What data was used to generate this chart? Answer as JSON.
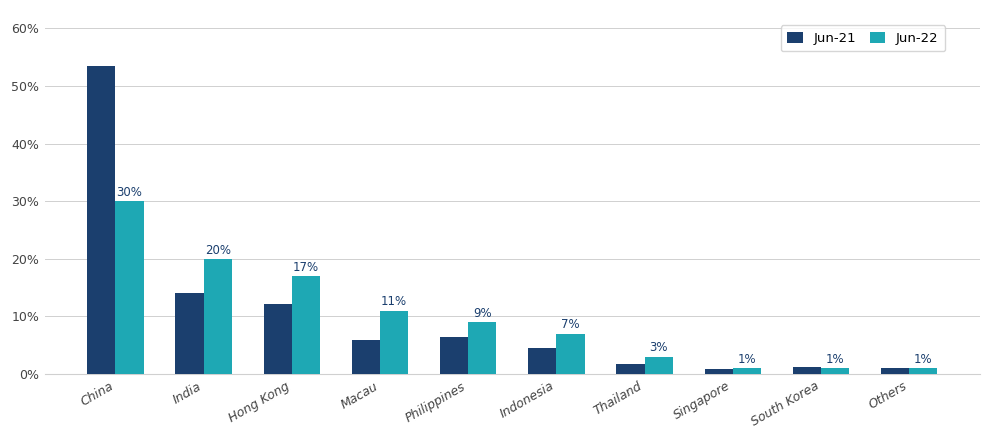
{
  "categories": [
    "China",
    "India",
    "Hong Kong",
    "Macau",
    "Philippines",
    "Indonesia",
    "Thailand",
    "Singapore",
    "South Korea",
    "Others"
  ],
  "jun21_values": [
    0.534,
    0.14,
    0.122,
    0.06,
    0.065,
    0.046,
    0.018,
    0.008,
    0.012,
    0.01
  ],
  "jun22_values": [
    0.3,
    0.2,
    0.17,
    0.11,
    0.09,
    0.07,
    0.03,
    0.01,
    0.01,
    0.01
  ],
  "jun22_labels": [
    "30%",
    "20%",
    "17%",
    "11%",
    "9%",
    "7%",
    "3%",
    "1%",
    "1%",
    "1%"
  ],
  "color_jun21": "#1b3f6e",
  "color_jun22": "#1ea8b4",
  "legend_labels": [
    "Jun-21",
    "Jun-22"
  ],
  "ylim": [
    0,
    0.63
  ],
  "yticks": [
    0.0,
    0.1,
    0.2,
    0.3,
    0.4,
    0.5,
    0.6
  ],
  "ytick_labels": [
    "0%",
    "10%",
    "20%",
    "30%",
    "40%",
    "50%",
    "60%"
  ],
  "bar_width": 0.32,
  "label_fontsize": 8.5,
  "tick_fontsize": 9,
  "legend_fontsize": 9.5,
  "background_color": "#ffffff",
  "grid_color": "#d0d0d0",
  "label_color": "#1b3f6e"
}
